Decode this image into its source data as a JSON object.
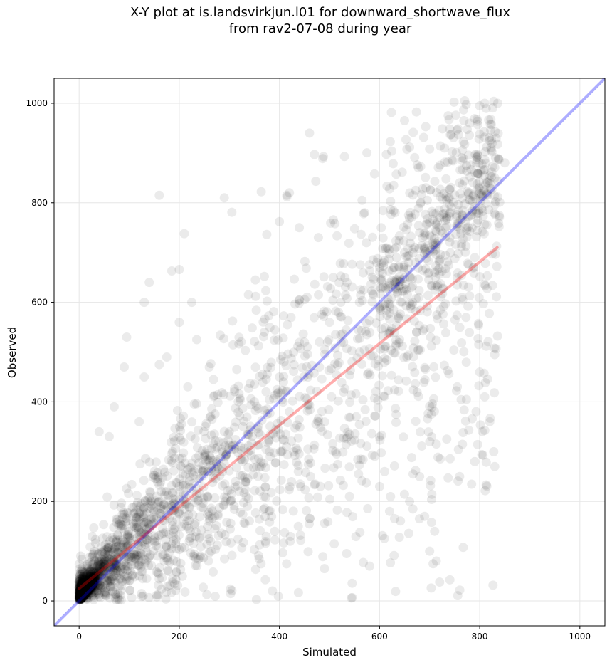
{
  "chart_data": {
    "type": "scatter",
    "title_line1": "X-Y plot at is.landsvirkjun.l01 for downward_shortwave_flux",
    "title_line2": "from rav2-07-08 during year",
    "xlabel": "Simulated",
    "ylabel": "Observed",
    "xlim": [
      -50,
      1050
    ],
    "ylim": [
      -50,
      1050
    ],
    "xticks": [
      0,
      200,
      400,
      600,
      800,
      1000
    ],
    "yticks": [
      0,
      200,
      400,
      600,
      800,
      1000
    ],
    "xtick_labels": [
      "0",
      "200",
      "400",
      "600",
      "800",
      "1000"
    ],
    "ytick_labels": [
      "0",
      "200",
      "400",
      "600",
      "800",
      "1000"
    ],
    "grid": true,
    "legend": "none",
    "point_color": "#000000",
    "point_alpha": 0.08,
    "identity_line": {
      "x": [
        -50,
        1050
      ],
      "y": [
        -50,
        1050
      ],
      "color": "#0000ff"
    },
    "regression_line": {
      "x": [
        0,
        835
      ],
      "y": [
        25,
        710
      ],
      "color": "#ff0000"
    },
    "points_description": "Approx. 3000+ points concentrated near origin and spreading roughly along y = 0.82x + 25 with large scatter up to x~835, y~1000",
    "sample_points": [
      [
        810,
        1000
      ],
      [
        770,
        1005
      ],
      [
        460,
        940
      ],
      [
        650,
        965
      ],
      [
        470,
        897
      ],
      [
        530,
        893
      ],
      [
        160,
        815
      ],
      [
        290,
        810
      ],
      [
        420,
        820
      ],
      [
        415,
        812
      ],
      [
        305,
        781
      ],
      [
        210,
        738
      ],
      [
        400,
        762
      ],
      [
        730,
        910
      ],
      [
        700,
        908
      ],
      [
        660,
        912
      ],
      [
        800,
        995
      ],
      [
        780,
        960
      ],
      [
        820,
        925
      ],
      [
        590,
        858
      ],
      [
        620,
        828
      ],
      [
        565,
        805
      ],
      [
        370,
        652
      ],
      [
        200,
        666
      ],
      [
        185,
        663
      ],
      [
        140,
        640
      ],
      [
        130,
        600
      ],
      [
        225,
        600
      ],
      [
        570,
        780
      ],
      [
        535,
        640
      ],
      [
        440,
        605
      ],
      [
        850,
        880
      ],
      [
        830,
        850
      ],
      [
        760,
        840
      ],
      [
        720,
        770
      ],
      [
        700,
        760
      ],
      [
        680,
        740
      ],
      [
        650,
        700
      ],
      [
        600,
        670
      ],
      [
        560,
        600
      ],
      [
        500,
        560
      ],
      [
        450,
        520
      ],
      [
        400,
        450
      ],
      [
        350,
        400
      ],
      [
        300,
        340
      ],
      [
        250,
        290
      ],
      [
        200,
        230
      ],
      [
        150,
        180
      ],
      [
        100,
        130
      ],
      [
        50,
        80
      ],
      [
        30,
        50
      ],
      [
        10,
        20
      ],
      [
        5,
        10
      ],
      [
        0,
        5
      ],
      [
        720,
        38
      ],
      [
        490,
        65
      ],
      [
        580,
        70
      ],
      [
        700,
        100
      ],
      [
        620,
        180
      ],
      [
        680,
        250
      ],
      [
        760,
        250
      ],
      [
        790,
        280
      ],
      [
        820,
        360
      ],
      [
        810,
        410
      ],
      [
        800,
        460
      ],
      [
        830,
        495
      ],
      [
        640,
        525
      ],
      [
        560,
        500
      ],
      [
        480,
        470
      ],
      [
        420,
        380
      ],
      [
        380,
        300
      ],
      [
        320,
        220
      ],
      [
        260,
        160
      ],
      [
        220,
        120
      ],
      [
        170,
        80
      ],
      [
        120,
        50
      ],
      [
        80,
        30
      ],
      [
        40,
        15
      ],
      [
        90,
        470
      ],
      [
        95,
        530
      ],
      [
        70,
        390
      ],
      [
        60,
        330
      ],
      [
        40,
        340
      ],
      [
        120,
        360
      ],
      [
        175,
        490
      ],
      [
        160,
        475
      ],
      [
        130,
        450
      ],
      [
        200,
        560
      ],
      [
        235,
        525
      ],
      [
        260,
        470
      ],
      [
        610,
        260
      ],
      [
        600,
        230
      ],
      [
        540,
        210
      ],
      [
        660,
        200
      ],
      [
        690,
        170
      ],
      [
        710,
        140
      ]
    ]
  }
}
